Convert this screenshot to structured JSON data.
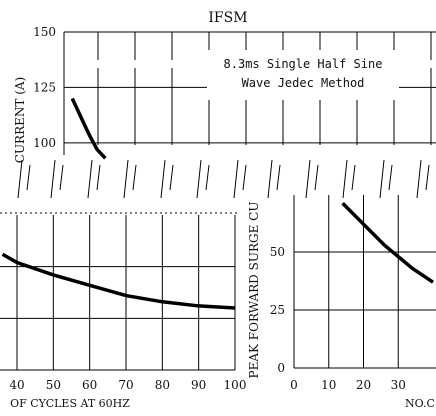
{
  "chart_data": [
    {
      "type": "line",
      "title": "IFSM",
      "ylabel": "CURRENT (A)",
      "xlabel": "",
      "y_ticks": [
        "150",
        "125",
        "100"
      ],
      "ylim": [
        90,
        150
      ],
      "xlim": [
        10,
        100
      ],
      "annotation_lines": [
        "8.3ms Single Half Sine",
        "Wave Jedec Method"
      ],
      "grid": true,
      "series": [
        {
          "x": [
            12,
            14,
            16,
            18,
            20
          ],
          "y": [
            120,
            112,
            104,
            97,
            93
          ]
        }
      ]
    },
    {
      "type": "line",
      "xlabel": "OF CYCLES AT 60HZ",
      "x_ticks": [
        "40",
        "50",
        "60",
        "70",
        "80",
        "90",
        "100"
      ],
      "xlim": [
        36,
        100
      ],
      "grid": true,
      "series": [
        {
          "x": [
            36,
            40,
            50,
            60,
            70,
            80,
            90,
            100
          ],
          "y": [
            56,
            52,
            46,
            41,
            36,
            33,
            31,
            30
          ]
        }
      ]
    },
    {
      "type": "line",
      "ylabel": "PEAK FORWARD SURGE CU",
      "y_ticks": [
        "0",
        "25",
        "50"
      ],
      "x_ticks": [
        "0",
        "10",
        "20",
        "30"
      ],
      "xlabel": "NO.C",
      "ylim": [
        0,
        75
      ],
      "xlim": [
        0,
        40
      ],
      "grid": true,
      "series": [
        {
          "x": [
            14,
            18,
            22,
            26,
            30,
            34,
            40
          ],
          "y": [
            71,
            65,
            59,
            53,
            48,
            43,
            37
          ]
        }
      ]
    }
  ]
}
